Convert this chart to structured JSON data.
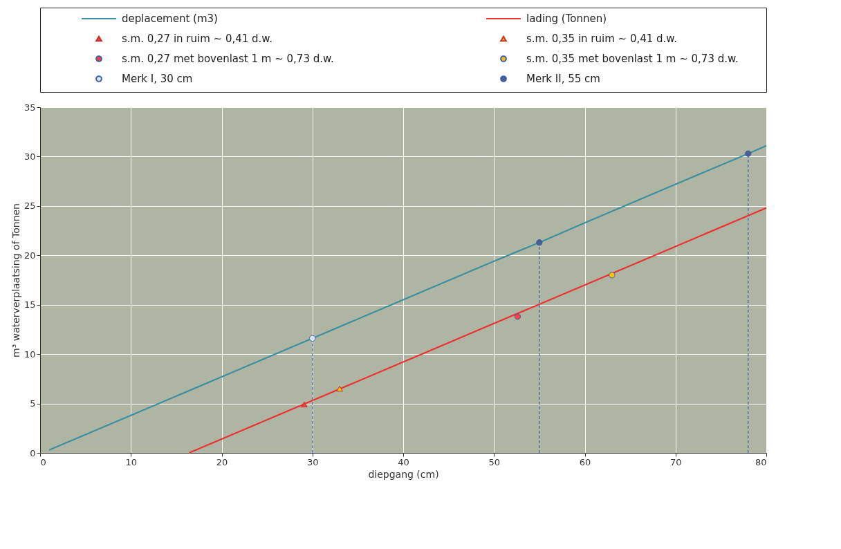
{
  "chart_data": {
    "type": "line",
    "xlabel": "diepgang (cm)",
    "ylabel": "m³ waterverplaatsing of Tonnen",
    "xlim": [
      0,
      80
    ],
    "ylim": [
      0,
      35
    ],
    "xticks": [
      0,
      10,
      20,
      30,
      40,
      50,
      60,
      70,
      80
    ],
    "yticks": [
      0,
      5,
      10,
      15,
      20,
      25,
      30,
      35
    ],
    "grid": true,
    "legend": "top",
    "series": [
      {
        "name": "deplacement (m3)",
        "color": "#3a8fa0",
        "x": [
          1,
          10,
          20,
          30,
          40,
          50,
          55,
          60,
          70,
          78,
          80
        ],
        "values": [
          0.3,
          3.8,
          7.7,
          11.6,
          15.5,
          19.4,
          21.3,
          23.3,
          27.2,
          30.3,
          31.1
        ]
      },
      {
        "name": "lading (Tonnen)",
        "color": "#ee3030",
        "x": [
          16.4,
          20,
          30,
          40,
          50,
          60,
          70,
          80
        ],
        "values": [
          0,
          1.4,
          5.3,
          9.2,
          13.1,
          17,
          20.9,
          24.8
        ]
      },
      {
        "name": "s.m. 0,27 in ruim ~ 0,41 d.w.",
        "type": "scatter",
        "marker": "triangle",
        "color": "#ff4040",
        "x": [
          29.1
        ],
        "values": [
          4.9
        ]
      },
      {
        "name": "s.m. 0,35 in ruim ~ 0,41 d.w.",
        "type": "scatter",
        "marker": "triangle",
        "color": "#ffc000",
        "x": [
          33
        ],
        "values": [
          6.5
        ]
      },
      {
        "name": "s.m. 0,27 met bovenlast 1 m ~ 0,73 d.w.",
        "type": "scatter",
        "marker": "circle",
        "color": "#ff4040",
        "x": [
          52.6
        ],
        "values": [
          13.8
        ]
      },
      {
        "name": "s.m. 0,35 met bovenlast 1 m ~ 0,73 d.w.",
        "type": "scatter",
        "marker": "circle",
        "color": "#ffc000",
        "x": [
          63
        ],
        "values": [
          18.0
        ]
      },
      {
        "name": "Merk I, 30 cm",
        "type": "scatter",
        "marker": "circle",
        "color": "#dfe8f5",
        "x": [
          30
        ],
        "values": [
          11.6
        ]
      },
      {
        "name": "Merk II, 55 cm",
        "type": "scatter",
        "marker": "circle",
        "color": "#4a5f8f",
        "x": [
          55,
          78
        ],
        "values": [
          21.3,
          30.3
        ]
      }
    ],
    "ref_lines": [
      {
        "axis": "x",
        "value": 30,
        "color": "#3a5fb0",
        "line_style": "dashed"
      },
      {
        "axis": "x",
        "value": 55,
        "color": "#3a5fb0",
        "line_style": "dashed"
      },
      {
        "axis": "x",
        "value": 78,
        "color": "#3a5fb0",
        "line_style": "dashed"
      }
    ]
  }
}
